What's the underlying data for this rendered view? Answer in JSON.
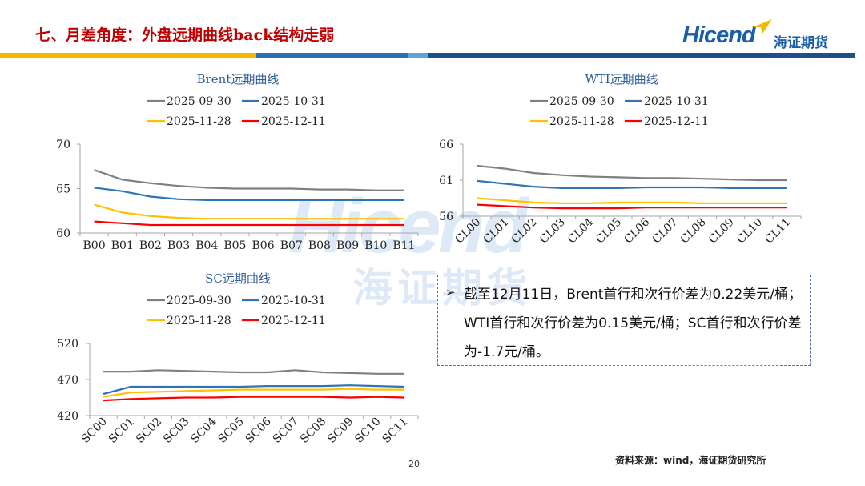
{
  "header": {
    "title": "七、月差角度：外盘远期曲线back结构走弱",
    "logo_latin": "Hicend",
    "logo_cn": "海证期货",
    "stripe_colors": [
      "#f5b800",
      "#2a70b8",
      "#5ea3d9",
      "#1f4e8c"
    ]
  },
  "watermark": {
    "latin": "Hicend",
    "cn": "海证期货"
  },
  "series_names": [
    "2025-09-30",
    "2025-10-31",
    "2025-11-28",
    "2025-12-11"
  ],
  "series_colors": [
    "#808080",
    "#2e75b6",
    "#ffc000",
    "#ff0000"
  ],
  "chart_data": [
    {
      "type": "line",
      "title": "Brent远期曲线",
      "categories": [
        "B00",
        "B01",
        "B02",
        "B03",
        "B04",
        "B05",
        "B06",
        "B07",
        "B08",
        "B09",
        "B10",
        "B11"
      ],
      "ylim": [
        60,
        70
      ],
      "yticks": [
        "70",
        "65",
        "60"
      ],
      "legend": "top",
      "grid": false,
      "series": [
        {
          "name": "2025-09-30",
          "values": [
            67.1,
            66.0,
            65.6,
            65.3,
            65.1,
            65.0,
            65.0,
            65.0,
            64.9,
            64.9,
            64.8,
            64.8
          ]
        },
        {
          "name": "2025-10-31",
          "values": [
            65.1,
            64.7,
            64.1,
            63.8,
            63.7,
            63.7,
            63.7,
            63.7,
            63.7,
            63.7,
            63.7,
            63.7
          ]
        },
        {
          "name": "2025-11-28",
          "values": [
            63.2,
            62.3,
            61.9,
            61.7,
            61.6,
            61.6,
            61.6,
            61.6,
            61.6,
            61.6,
            61.6,
            61.6
          ]
        },
        {
          "name": "2025-12-11",
          "values": [
            61.3,
            61.1,
            60.9,
            60.9,
            60.9,
            60.9,
            60.9,
            60.9,
            60.9,
            60.9,
            60.9,
            60.9
          ]
        }
      ]
    },
    {
      "type": "line",
      "title": "WTI远期曲线",
      "categories": [
        "CL00",
        "CL01",
        "CL02",
        "CL03",
        "CL04",
        "CL05",
        "CL06",
        "CL07",
        "CL08",
        "CL09",
        "CL10",
        "CL11"
      ],
      "ylim": [
        56,
        66
      ],
      "yticks": [
        "66",
        "61",
        "56"
      ],
      "legend": "top",
      "grid": false,
      "series": [
        {
          "name": "2025-09-30",
          "values": [
            63.0,
            62.6,
            62.0,
            61.7,
            61.5,
            61.4,
            61.3,
            61.3,
            61.2,
            61.1,
            61.0,
            61.0
          ]
        },
        {
          "name": "2025-10-31",
          "values": [
            60.9,
            60.5,
            60.1,
            59.9,
            59.9,
            59.9,
            60.0,
            60.0,
            60.0,
            59.9,
            59.9,
            59.9
          ]
        },
        {
          "name": "2025-11-28",
          "values": [
            58.5,
            58.2,
            57.9,
            57.8,
            57.8,
            57.9,
            57.9,
            57.9,
            57.8,
            57.8,
            57.8,
            57.8
          ]
        },
        {
          "name": "2025-12-11",
          "values": [
            57.6,
            57.4,
            57.2,
            57.1,
            57.1,
            57.1,
            57.2,
            57.2,
            57.2,
            57.2,
            57.2,
            57.2
          ]
        }
      ]
    },
    {
      "type": "line",
      "title": "SC远期曲线",
      "categories": [
        "SC00",
        "SC01",
        "SC02",
        "SC03",
        "SC04",
        "SC05",
        "SC06",
        "SC07",
        "SC08",
        "SC09",
        "SC10",
        "SC11"
      ],
      "ylim": [
        420,
        520
      ],
      "yticks": [
        "520",
        "470",
        "420"
      ],
      "legend": "top",
      "grid": false,
      "series": [
        {
          "name": "2025-09-30",
          "values": [
            481,
            481,
            483,
            482,
            481,
            480,
            480,
            483,
            480,
            479,
            478,
            478
          ]
        },
        {
          "name": "2025-10-31",
          "values": [
            450,
            460,
            460,
            460,
            460,
            460,
            461,
            461,
            461,
            462,
            461,
            460
          ]
        },
        {
          "name": "2025-11-28",
          "values": [
            446,
            452,
            453,
            454,
            455,
            456,
            456,
            456,
            456,
            457,
            456,
            456
          ]
        },
        {
          "name": "2025-12-11",
          "values": [
            441,
            443,
            444,
            445,
            445,
            446,
            446,
            446,
            446,
            445,
            446,
            445
          ]
        }
      ]
    }
  ],
  "note": {
    "arrow": "➢",
    "text": "截至12月11日，Brent首行和次行价差为0.22美元/桶；WTI首行和次行价差为0.15美元/桶；SC首行和次行价差为-1.7元/桶。"
  },
  "footer": {
    "page_number": "20",
    "source": "资料来源：wind，海证期货研究所"
  }
}
